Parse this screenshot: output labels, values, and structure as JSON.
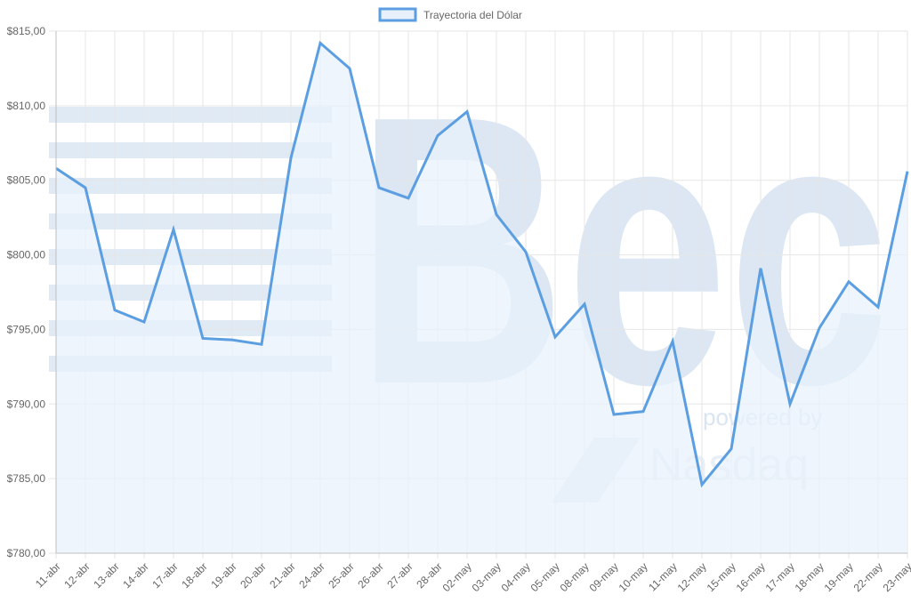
{
  "chart_data": {
    "type": "line",
    "title": "",
    "xlabel": "",
    "ylabel": "",
    "categories": [
      "11-abr",
      "12-abr",
      "13-abr",
      "14-abr",
      "17-abr",
      "18-abr",
      "19-abr",
      "20-abr",
      "21-abr",
      "24-abr",
      "25-abr",
      "26-abr",
      "27-abr",
      "28-abr",
      "02-may",
      "03-may",
      "04-may",
      "05-may",
      "08-may",
      "09-may",
      "10-may",
      "11-may",
      "12-may",
      "15-may",
      "16-may",
      "17-may",
      "18-may",
      "19-may",
      "22-may",
      "23-may"
    ],
    "series": [
      {
        "name": "Trayectoria del Dólar",
        "values": [
          805.8,
          804.5,
          796.3,
          795.5,
          801.7,
          794.4,
          794.3,
          794.0,
          806.5,
          814.2,
          812.5,
          804.5,
          803.8,
          808.0,
          809.6,
          802.7,
          800.2,
          794.5,
          796.7,
          789.3,
          789.5,
          794.2,
          784.6,
          787.0,
          799.1,
          790.0,
          795.1,
          798.2,
          796.5,
          805.6
        ]
      }
    ],
    "ylim": [
      780,
      815
    ],
    "y_ticks": [
      "$815,00",
      "$810,00",
      "$805,00",
      "$800,00",
      "$795,00",
      "$790,00",
      "$785,00",
      "$780,00"
    ],
    "grid": true,
    "legend_position": "top",
    "colors": {
      "line": "#5b9ee1",
      "fill": "#e8f1fb",
      "grid": "#e6e6e6",
      "axis": "#bfbfbf",
      "watermark": "#d6e3f1"
    }
  },
  "watermark": {
    "text_main": "Bec",
    "text_powered": "powered by",
    "text_brand": "Nasdaq"
  }
}
